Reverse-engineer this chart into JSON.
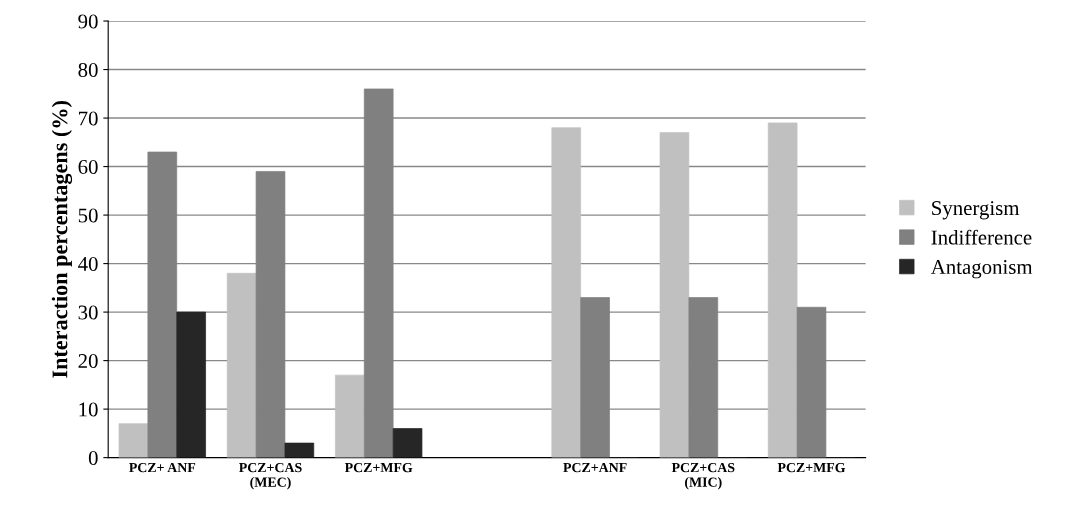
{
  "chart_data": {
    "type": "bar",
    "ylabel": "Interaction percentagens (%)",
    "categories": [
      "PCZ+ ANF",
      "PCZ+CAS\n(MEC)",
      "PCZ+MFG",
      null,
      "PCZ+ANF",
      "PCZ+CAS\n(MIC)",
      "PCZ+MFG"
    ],
    "series": [
      {
        "name": "Synergism",
        "color": "#c0c0c0",
        "values": [
          7,
          38,
          17,
          null,
          68,
          67,
          69
        ]
      },
      {
        "name": "Indifference",
        "color": "#808080",
        "values": [
          63,
          59,
          76,
          null,
          33,
          33,
          31
        ]
      },
      {
        "name": "Antagonism",
        "color": "#262626",
        "values": [
          30,
          3,
          6,
          null,
          0,
          0,
          0
        ]
      }
    ],
    "ylim": [
      0,
      90
    ],
    "yticks": [
      0,
      10,
      20,
      30,
      40,
      50,
      60,
      70,
      80,
      90
    ],
    "grid": "y",
    "legend": "right"
  }
}
